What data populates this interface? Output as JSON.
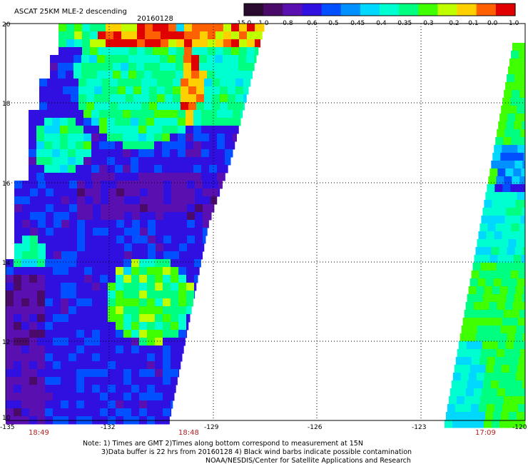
{
  "title": "ASCAT 25KM MLE-2 descending",
  "date": "20160128",
  "colorbar": {
    "labels": [
      "-15.0",
      "-1.0",
      "-0.8",
      "-0.6",
      "-0.5",
      "-0.45",
      "-0.4",
      "-0.35",
      "-0.3",
      "-0.2",
      "-0.1",
      "0.0",
      "1.0"
    ],
    "colors": [
      "#2a0a2e",
      "#4a0a6a",
      "#5a10b0",
      "#3010e0",
      "#0050ff",
      "#0090ff",
      "#00d8ff",
      "#00ffd0",
      "#00ff80",
      "#40ff00",
      "#c0ff00",
      "#ffd000",
      "#ff6000",
      "#e00000"
    ]
  },
  "map": {
    "lon_range": [
      -135,
      -120
    ],
    "lat_range": [
      10,
      20
    ],
    "lon_ticks": [
      "-135",
      "-132",
      "-129",
      "-126",
      "-123",
      "-120"
    ],
    "lat_ticks": [
      "20",
      "18",
      "16",
      "14",
      "12",
      "10"
    ],
    "times": [
      "18:49",
      "18:48",
      "17:09"
    ],
    "swaths": [
      {
        "name": "swath-west",
        "color_scale": "mle"
      },
      {
        "name": "swath-east",
        "color_scale": "mle"
      }
    ]
  },
  "notes": [
    "Note: 1) Times are GMT 2)Times along bottom correspond to measurement at 15N",
    "3)Data buffer is 22 hrs from 20160128 4) Black wind barbs indicate possible contamination",
    "NOAA/NESDIS/Center for Satellite Applications and Research"
  ]
}
